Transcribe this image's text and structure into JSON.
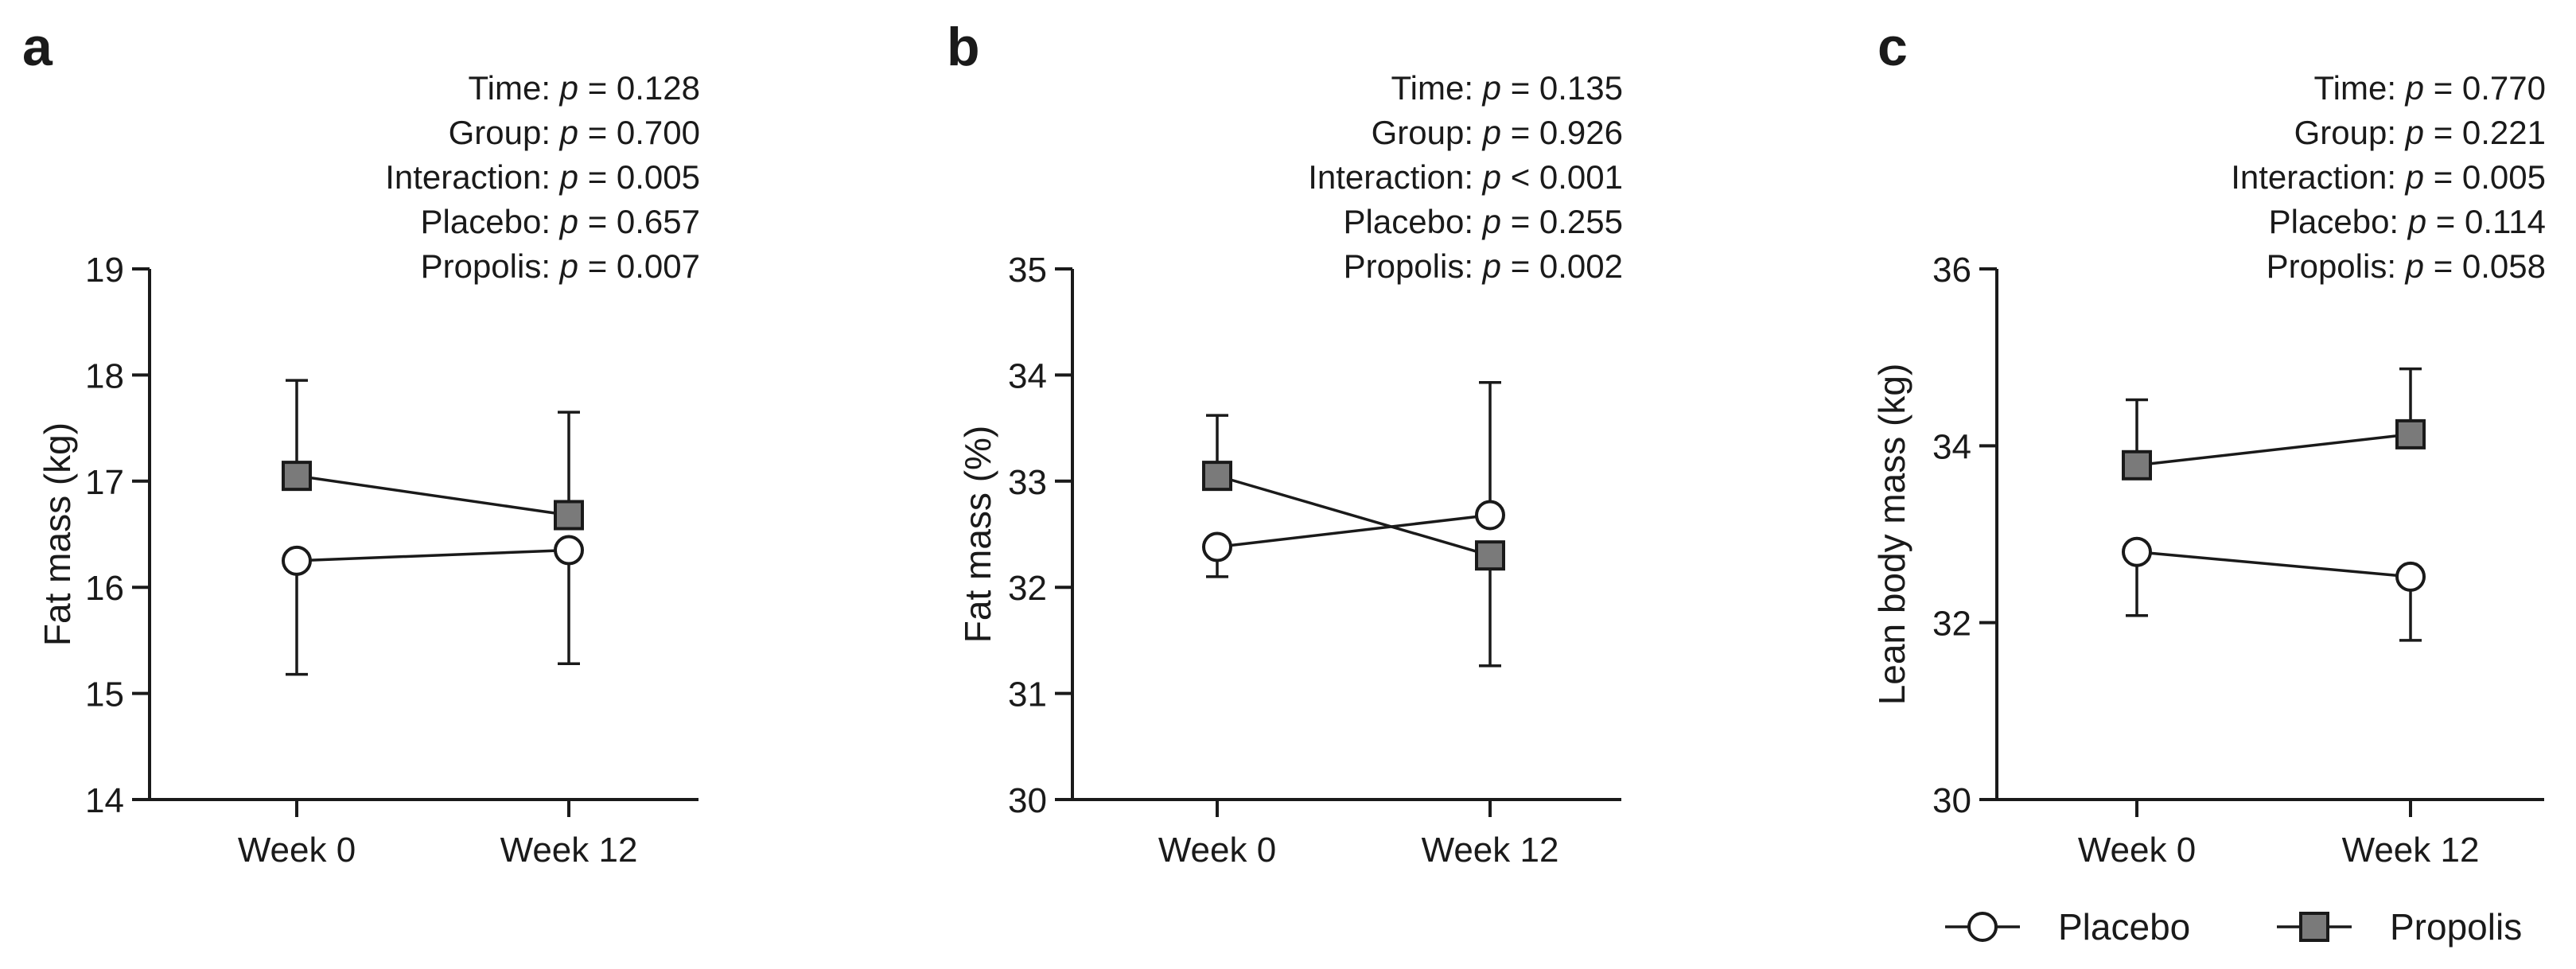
{
  "legend": {
    "items": [
      {
        "name": "Placebo",
        "marker": "circle",
        "fill": "#ffffff"
      },
      {
        "name": "Propolis",
        "marker": "square",
        "fill": "#7a7a7a"
      }
    ],
    "placement": "bottom-right"
  },
  "chart_data": [
    {
      "type": "line",
      "panel": "a",
      "ylabel": "Fat mass (kg)",
      "xlabel": "",
      "categories": [
        "Week 0",
        "Week 12"
      ],
      "ylim": [
        14,
        19
      ],
      "yticks": [
        14,
        15,
        16,
        17,
        18,
        19
      ],
      "stats": [
        {
          "label": "Time:",
          "op": "=",
          "value": "0.128"
        },
        {
          "label": "Group:",
          "op": "=",
          "value": "0.700"
        },
        {
          "label": "Interaction:",
          "op": "=",
          "value": "0.005"
        },
        {
          "label": "Placebo:",
          "op": "=",
          "value": "0.657"
        },
        {
          "label": "Propolis:",
          "op": "=",
          "value": "0.007"
        }
      ],
      "series": [
        {
          "name": "Placebo",
          "values": [
            16.25,
            16.35
          ],
          "err_low": [
            15.18,
            15.28
          ],
          "err_high": [
            16.25,
            16.35
          ]
        },
        {
          "name": "Propolis",
          "values": [
            17.05,
            16.68
          ],
          "err_low": [
            17.05,
            16.68
          ],
          "err_high": [
            17.95,
            17.65
          ]
        }
      ]
    },
    {
      "type": "line",
      "panel": "b",
      "ylabel": "Fat mass (%)",
      "xlabel": "",
      "categories": [
        "Week 0",
        "Week 12"
      ],
      "ylim": [
        30,
        35
      ],
      "yticks": [
        30,
        31,
        32,
        33,
        34,
        35
      ],
      "stats": [
        {
          "label": "Time:",
          "op": "=",
          "value": "0.135"
        },
        {
          "label": "Group:",
          "op": "=",
          "value": "0.926"
        },
        {
          "label": "Interaction:",
          "op": "<",
          "value": "0.001"
        },
        {
          "label": "Placebo:",
          "op": "=",
          "value": "0.255"
        },
        {
          "label": "Propolis:",
          "op": "=",
          "value": "0.002"
        }
      ],
      "series": [
        {
          "name": "Placebo",
          "values": [
            32.38,
            32.68
          ],
          "err_low": [
            32.1,
            32.68
          ],
          "err_high": [
            32.38,
            33.93
          ]
        },
        {
          "name": "Propolis",
          "values": [
            33.05,
            32.3
          ],
          "err_low": [
            33.05,
            31.26
          ],
          "err_high": [
            33.62,
            32.3
          ]
        }
      ]
    },
    {
      "type": "line",
      "panel": "c",
      "ylabel": "Lean body mass (kg)",
      "xlabel": "",
      "categories": [
        "Week 0",
        "Week 12"
      ],
      "ylim": [
        30,
        36
      ],
      "yticks": [
        30,
        32,
        34,
        36
      ],
      "stats": [
        {
          "label": "Time:",
          "op": "=",
          "value": "0.770"
        },
        {
          "label": "Group:",
          "op": "=",
          "value": "0.221"
        },
        {
          "label": "Interaction:",
          "op": "=",
          "value": "0.005"
        },
        {
          "label": "Placebo:",
          "op": "=",
          "value": "0.114"
        },
        {
          "label": "Propolis:",
          "op": "=",
          "value": "0.058"
        }
      ],
      "series": [
        {
          "name": "Placebo",
          "values": [
            32.8,
            32.52
          ],
          "err_low": [
            32.08,
            31.8
          ],
          "err_high": [
            32.8,
            32.52
          ]
        },
        {
          "name": "Propolis",
          "values": [
            33.78,
            34.13
          ],
          "err_low": [
            33.78,
            34.13
          ],
          "err_high": [
            34.52,
            34.87
          ]
        }
      ]
    }
  ]
}
